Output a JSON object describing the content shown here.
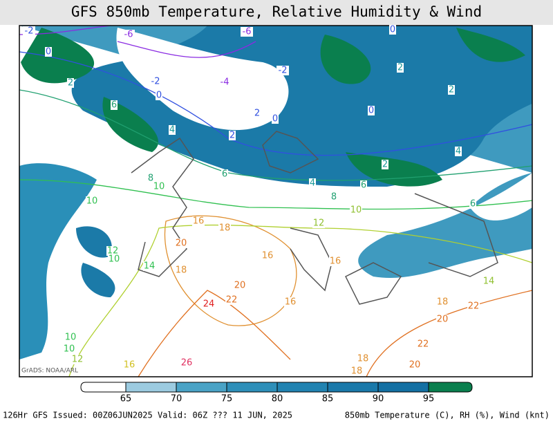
{
  "title": "GFS 850mb Temperature, Relative Humidity & Wind",
  "credit": "GrADS: NOAA/ARL",
  "footer_left": "126Hr GFS Issued: 00Z06JUN2025 Valid: 06Z ??? 11 JUN, 2025",
  "footer_right": "850mb Temperature (C), RH (%), Wind (knt)",
  "colorbar": {
    "ticks": [
      65,
      70,
      75,
      80,
      85,
      90,
      95
    ],
    "colors": [
      "#ffffff",
      "#9ccbe0",
      "#4aa3c6",
      "#2e8fb9",
      "#2183b1",
      "#1a79aa",
      "#1470a3",
      "#0a7f4e"
    ]
  },
  "contour_labels": [
    {
      "text": "-6",
      "color": "#8a2be2"
    },
    {
      "text": "-6",
      "color": "#8a2be2"
    },
    {
      "text": "-2",
      "color": "#3050e0"
    },
    {
      "text": "0",
      "color": "#3050e0"
    },
    {
      "text": "2",
      "color": "#1a9a9a"
    },
    {
      "text": "-2",
      "color": "#3050e0"
    },
    {
      "text": "-4",
      "color": "#8a2be2"
    },
    {
      "text": "-2",
      "color": "#3050e0"
    },
    {
      "text": "0",
      "color": "#3050e0"
    },
    {
      "text": "0",
      "color": "#3050e0"
    },
    {
      "text": "2",
      "color": "#3050e0"
    },
    {
      "text": "0",
      "color": "#3050e0"
    },
    {
      "text": "2",
      "color": "#3050e0"
    },
    {
      "text": "2",
      "color": "#1a9a9a"
    },
    {
      "text": "2",
      "color": "#1a9a9a"
    },
    {
      "text": "0",
      "color": "#3050e0"
    },
    {
      "text": "6",
      "color": "#20a070"
    },
    {
      "text": "4",
      "color": "#1a9a9a"
    },
    {
      "text": "6",
      "color": "#20a070"
    },
    {
      "text": "4",
      "color": "#1a9a9a"
    },
    {
      "text": "6",
      "color": "#20a070"
    },
    {
      "text": "2",
      "color": "#1a9a9a"
    },
    {
      "text": "4",
      "color": "#1a9a9a"
    },
    {
      "text": "6",
      "color": "#20a070"
    },
    {
      "text": "8",
      "color": "#20a070"
    },
    {
      "text": "10",
      "color": "#30c050"
    },
    {
      "text": "10",
      "color": "#30c050"
    },
    {
      "text": "8",
      "color": "#20a070"
    },
    {
      "text": "10",
      "color": "#90c030"
    },
    {
      "text": "12",
      "color": "#90c030"
    },
    {
      "text": "16",
      "color": "#e09030"
    },
    {
      "text": "18",
      "color": "#e09030"
    },
    {
      "text": "12",
      "color": "#30c050"
    },
    {
      "text": "10",
      "color": "#30c050"
    },
    {
      "text": "14",
      "color": "#30c050"
    },
    {
      "text": "20",
      "color": "#e07020"
    },
    {
      "text": "18",
      "color": "#e09030"
    },
    {
      "text": "16",
      "color": "#e09030"
    },
    {
      "text": "16",
      "color": "#e09030"
    },
    {
      "text": "20",
      "color": "#e07020"
    },
    {
      "text": "22",
      "color": "#e07020"
    },
    {
      "text": "24",
      "color": "#e02020"
    },
    {
      "text": "16",
      "color": "#e09030"
    },
    {
      "text": "18",
      "color": "#e09030"
    },
    {
      "text": "22",
      "color": "#e07020"
    },
    {
      "text": "20",
      "color": "#e07020"
    },
    {
      "text": "22",
      "color": "#e07020"
    },
    {
      "text": "20",
      "color": "#e07020"
    },
    {
      "text": "18",
      "color": "#e09030"
    },
    {
      "text": "18",
      "color": "#e09030"
    },
    {
      "text": "26",
      "color": "#e03060"
    },
    {
      "text": "16",
      "color": "#d0c020"
    },
    {
      "text": "10",
      "color": "#30c050"
    },
    {
      "text": "10",
      "color": "#30c050"
    },
    {
      "text": "12",
      "color": "#90c030"
    },
    {
      "text": "14",
      "color": "#90c030"
    }
  ]
}
